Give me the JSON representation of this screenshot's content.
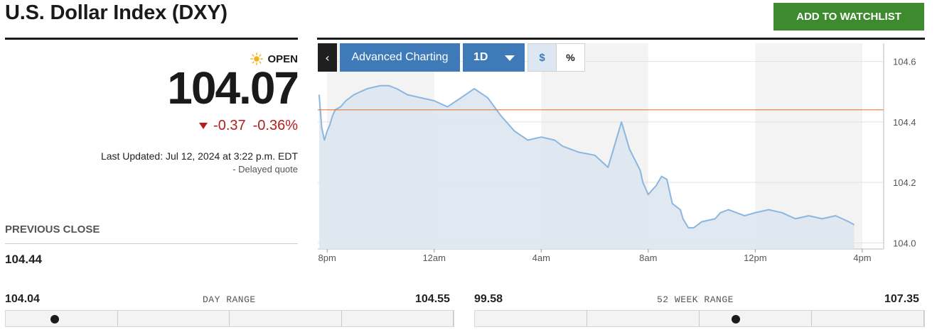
{
  "header": {
    "title": "U.S. Dollar Index (DXY)",
    "watchlist_button": "ADD TO WATCHLIST"
  },
  "quote": {
    "status": "OPEN",
    "price": "104.07",
    "change": "-0.37",
    "change_percent": "-0.36%",
    "last_updated": "Last Updated: Jul 12, 2024 at 3:22 p.m. EDT",
    "delayed": "- Delayed quote",
    "direction": "down"
  },
  "previous_close": {
    "label": "PREVIOUS CLOSE",
    "value": "104.44"
  },
  "day_range": {
    "label": "DAY RANGE",
    "low": "104.04",
    "high": "104.55",
    "position": 0.11
  },
  "week52_range": {
    "label": "52 WEEK RANGE",
    "low": "99.58",
    "high": "107.35",
    "position": 0.58
  },
  "toolbar": {
    "back_label": "‹",
    "advanced_label": "Advanced Charting",
    "period_label": "1D",
    "dollar_label": "$",
    "percent_label": "%"
  },
  "colors": {
    "accent_blue": "#3e7ab8",
    "line": "#8ab6df",
    "fill": "#dde7f0",
    "prev_close_line": "#e07b3c",
    "down": "#b71c1c",
    "watchlist_green": "#3e8a2f"
  },
  "chart_data": {
    "type": "area",
    "y_ticks": [
      "104.0",
      "104.2",
      "104.4",
      "104.6"
    ],
    "y_tick_values": [
      104.0,
      104.2,
      104.4,
      104.6
    ],
    "ylim": [
      103.98,
      104.66
    ],
    "x_ticks": [
      "8pm",
      "12am",
      "4am",
      "8am",
      "12pm",
      "4pm"
    ],
    "x_tick_hours": [
      0,
      4,
      8,
      12,
      16,
      20
    ],
    "x_range_hours": [
      -0.35,
      20.8
    ],
    "reference_line": {
      "label": "previous close",
      "value": 104.44
    },
    "series": [
      {
        "hours": [
          -0.3,
          -0.2,
          -0.1,
          0,
          0.1,
          0.2,
          0.3,
          0.5,
          0.7,
          1.0,
          1.5,
          2.0,
          2.3,
          2.6,
          3.0,
          3.5,
          4.0,
          4.5,
          5.0,
          5.5,
          6.0,
          6.5,
          7.0,
          7.5,
          8.0,
          8.5,
          8.8,
          9.1,
          9.4,
          10.0,
          10.5,
          11.0,
          11.3,
          11.7,
          11.8,
          12.0,
          12.3,
          12.5,
          12.7,
          12.9,
          13.2,
          13.3,
          13.5,
          13.7,
          14.0,
          14.5,
          14.7,
          15.0,
          15.3,
          15.6,
          16.0,
          16.5,
          17.0,
          17.5,
          18.0,
          18.5,
          19.0,
          19.5,
          19.7
        ],
        "values": [
          104.49,
          104.38,
          104.34,
          104.37,
          104.39,
          104.42,
          104.44,
          104.45,
          104.47,
          104.49,
          104.51,
          104.52,
          104.52,
          104.51,
          104.49,
          104.48,
          104.47,
          104.45,
          104.48,
          104.51,
          104.48,
          104.42,
          104.37,
          104.34,
          104.35,
          104.34,
          104.32,
          104.31,
          104.3,
          104.29,
          104.25,
          104.4,
          104.31,
          104.24,
          104.2,
          104.16,
          104.19,
          104.22,
          104.21,
          104.13,
          104.11,
          104.08,
          104.05,
          104.05,
          104.07,
          104.08,
          104.1,
          104.11,
          104.1,
          104.09,
          104.1,
          104.11,
          104.1,
          104.08,
          104.09,
          104.08,
          104.09,
          104.07,
          104.06
        ]
      }
    ],
    "shaded_bands_hours": [
      [
        0,
        4
      ],
      [
        8,
        12
      ],
      [
        16,
        20
      ]
    ]
  }
}
